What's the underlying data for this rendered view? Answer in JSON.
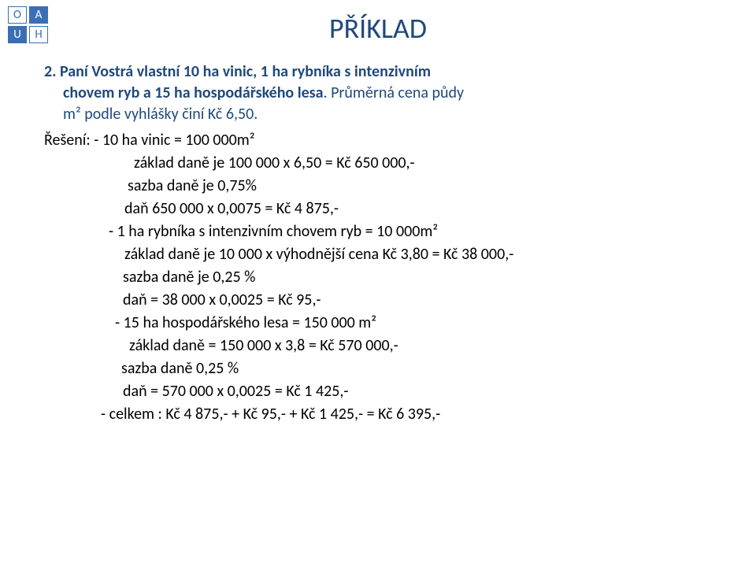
{
  "logo": {
    "tl": "O",
    "tr": "A",
    "bl": "U",
    "br": "H"
  },
  "title": "PŘÍKLAD",
  "intro": {
    "line1_prefix": "2. Paní  Vostrá vlastní 10 ha vinic, 1 ha rybníka s intenzivním",
    "line2": "chovem ryb a 15 ha hospodářského lesa",
    "line2_suffix": ". Průměrná cena půdy ",
    "line3": "m² podle vyhlášky činí Kč 6,50."
  },
  "solution": {
    "l1": "Řešení:  - 10 ha vinic = 100 000m²",
    "l2": "základ daně je 100 000 x 6,50 = Kč 650 000,-",
    "l3": "sazba daně je 0,75%",
    "l4": "daň 650 000 x 0,0075 = Kč 4 875,-",
    "l5": "- 1 ha rybníka s intenzivním chovem ryb = 10 000m²",
    "l6": "základ daně  je 10 000 x výhodnější cena Kč 3,80 = Kč 38 000,-",
    "l7": "sazba daně  je 0,25 %",
    "l8": "daň = 38 000 x 0,0025 = Kč 95,-",
    "l9": "- 15 ha hospodářského lesa = 150 000 m²",
    "l10": "základ daně = 150 000 x 3,8 =  Kč 570 000,-",
    "l11": "sazba daně  0,25 %",
    "l12": "daň = 570 000 x 0,0025 = Kč 1 425,-",
    "l13": "- celkem : Kč 4 875,- + Kč 95,- + Kč 1 425,- = Kč 6 395,-"
  },
  "colors": {
    "heading": "#1f497d",
    "body": "#000000",
    "logo": "#3b6fb5",
    "background": "#ffffff"
  },
  "fonts": {
    "title_size_pt": 27,
    "body_size_pt": 15
  }
}
